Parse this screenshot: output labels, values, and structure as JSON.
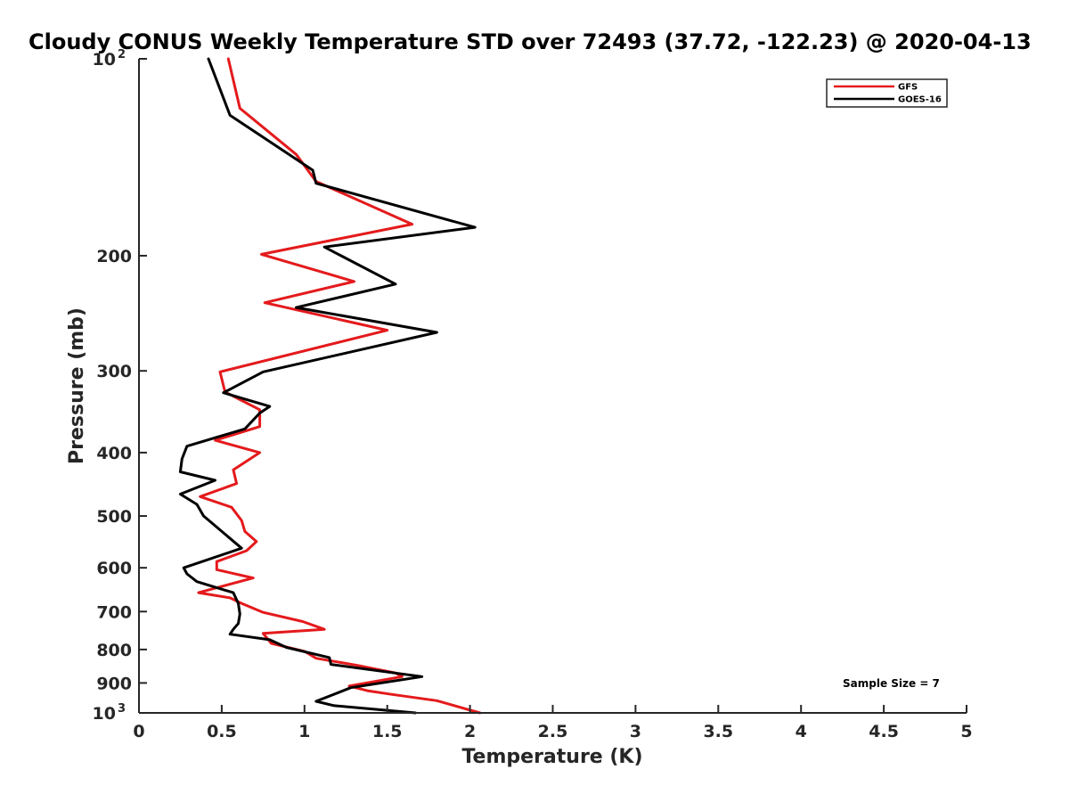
{
  "chart_data": {
    "type": "line",
    "title": "Cloudy CONUS Weekly Temperature STD over 72493 (37.72, -122.23) @ 2020-04-13",
    "xlabel": "Temperature (K)",
    "ylabel": "Pressure (mb)",
    "xlim": [
      0,
      5
    ],
    "ylim": [
      1000,
      100
    ],
    "y_scale": "log",
    "y_reversed": true,
    "x_ticks": [
      "0",
      "0.5",
      "1",
      "1.5",
      "2",
      "2.5",
      "3",
      "3.5",
      "4",
      "4.5",
      "5"
    ],
    "y_ticks": [
      {
        "value": 100,
        "label": "10",
        "sup": "2"
      },
      {
        "value": 200,
        "label": "200",
        "sup": ""
      },
      {
        "value": 300,
        "label": "300",
        "sup": ""
      },
      {
        "value": 400,
        "label": "400",
        "sup": ""
      },
      {
        "value": 500,
        "label": "500",
        "sup": ""
      },
      {
        "value": 600,
        "label": "600",
        "sup": ""
      },
      {
        "value": 700,
        "label": "700",
        "sup": ""
      },
      {
        "value": 800,
        "label": "800",
        "sup": ""
      },
      {
        "value": 900,
        "label": "900",
        "sup": ""
      },
      {
        "value": 1000,
        "label": "10",
        "sup": "3"
      }
    ],
    "grid": false,
    "legend_position": "top-right",
    "annotation": "Sample Size = 7",
    "series": [
      {
        "name": "GFS",
        "color": "#e41a1c",
        "points": [
          [
            0.54,
            100
          ],
          [
            0.61,
            119
          ],
          [
            0.95,
            140
          ],
          [
            1.07,
            154
          ],
          [
            1.65,
            179
          ],
          [
            0.74,
            199
          ],
          [
            1.3,
            219
          ],
          [
            0.76,
            236
          ],
          [
            1.5,
            260
          ],
          [
            0.49,
            301
          ],
          [
            0.52,
            323
          ],
          [
            0.73,
            344
          ],
          [
            0.73,
            365
          ],
          [
            0.46,
            383
          ],
          [
            0.73,
            400
          ],
          [
            0.57,
            425
          ],
          [
            0.59,
            446
          ],
          [
            0.37,
            467
          ],
          [
            0.56,
            485
          ],
          [
            0.62,
            508
          ],
          [
            0.64,
            528
          ],
          [
            0.71,
            547
          ],
          [
            0.65,
            565
          ],
          [
            0.47,
            587
          ],
          [
            0.47,
            604
          ],
          [
            0.69,
            622
          ],
          [
            0.36,
            655
          ],
          [
            0.55,
            667
          ],
          [
            0.62,
            680
          ],
          [
            0.75,
            702
          ],
          [
            0.99,
            725
          ],
          [
            1.12,
            745
          ],
          [
            0.75,
            756
          ],
          [
            0.8,
            783
          ],
          [
            1.0,
            805
          ],
          [
            1.07,
            825
          ],
          [
            1.32,
            846
          ],
          [
            1.55,
            869
          ],
          [
            1.59,
            880
          ],
          [
            1.27,
            910
          ],
          [
            1.38,
            925
          ],
          [
            1.53,
            937
          ],
          [
            1.8,
            958
          ],
          [
            2.06,
            1000
          ]
        ]
      },
      {
        "name": "GOES-16",
        "color": "#000000",
        "points": [
          [
            0.42,
            100
          ],
          [
            0.55,
            122
          ],
          [
            1.05,
            148
          ],
          [
            1.07,
            155
          ],
          [
            2.03,
            181
          ],
          [
            1.12,
            194
          ],
          [
            1.55,
            221
          ],
          [
            0.95,
            240
          ],
          [
            1.8,
            262
          ],
          [
            0.75,
            301
          ],
          [
            0.51,
            324
          ],
          [
            0.79,
            340
          ],
          [
            0.73,
            348
          ],
          [
            0.64,
            368
          ],
          [
            0.29,
            391
          ],
          [
            0.26,
            409
          ],
          [
            0.25,
            428
          ],
          [
            0.46,
            441
          ],
          [
            0.25,
            463
          ],
          [
            0.35,
            480
          ],
          [
            0.39,
            500
          ],
          [
            0.62,
            560
          ],
          [
            0.27,
            600
          ],
          [
            0.29,
            613
          ],
          [
            0.35,
            630
          ],
          [
            0.57,
            655
          ],
          [
            0.6,
            680
          ],
          [
            0.61,
            706
          ],
          [
            0.6,
            730
          ],
          [
            0.57,
            745
          ],
          [
            0.55,
            758
          ],
          [
            0.79,
            773
          ],
          [
            0.89,
            794
          ],
          [
            1.15,
            823
          ],
          [
            1.16,
            843
          ],
          [
            1.71,
            880
          ],
          [
            1.28,
            915
          ],
          [
            1.07,
            960
          ],
          [
            1.18,
            975
          ],
          [
            1.67,
            1000
          ]
        ]
      }
    ]
  }
}
